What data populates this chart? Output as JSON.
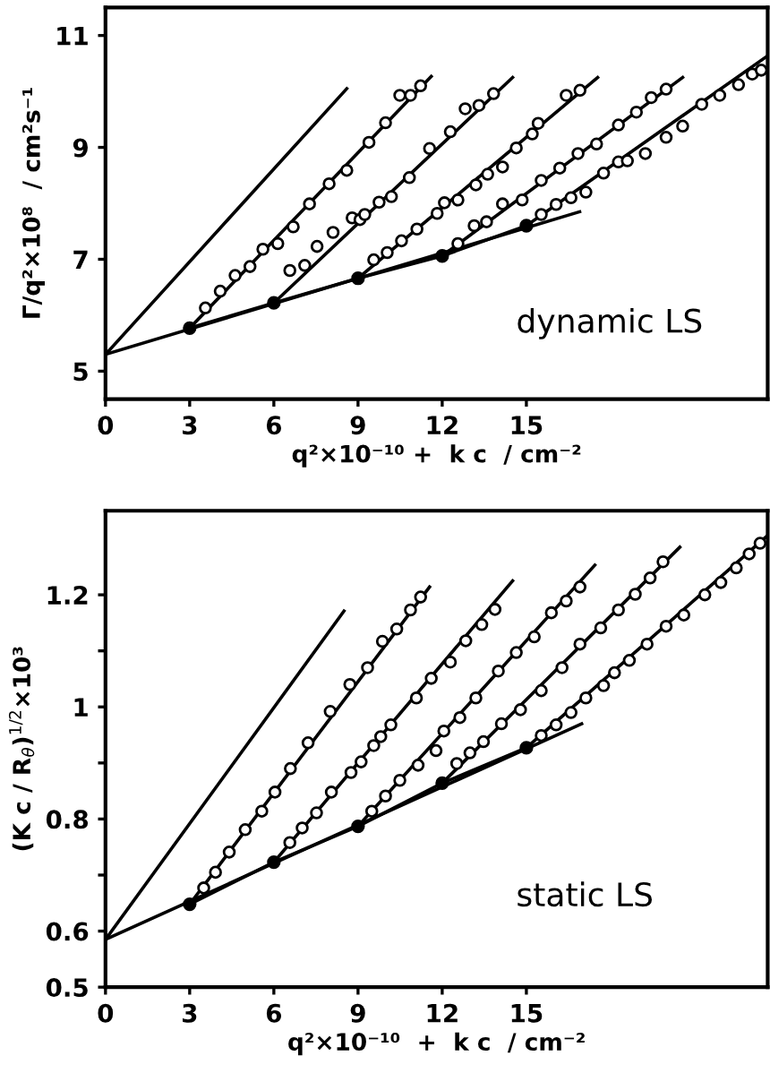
{
  "chart_data": [
    {
      "type": "scatter",
      "xlabel": "q²×10⁻¹⁰ +  k c  / cm⁻²",
      "ylabel": "Γ/q²×10⁸  / cm²s⁻¹",
      "annotations": [
        "dynamic LS"
      ],
      "xlim": [
        0,
        23.6
      ],
      "ylim": [
        4.5,
        11.5
      ],
      "xticks": [
        0,
        3,
        6,
        9,
        12,
        15
      ],
      "yticks": [
        5,
        7,
        9,
        11
      ],
      "grid": false,
      "series": [
        {
          "type": "line",
          "color": "#000000",
          "marker": "none",
          "x": [
            0,
            8.6
          ],
          "values": [
            5.3,
            10.05
          ]
        },
        {
          "type": "line",
          "color": "#000000",
          "marker": "none",
          "x": [
            0,
            16.9
          ],
          "values": [
            5.3,
            7.85
          ]
        },
        {
          "type": "line",
          "color": "#000000",
          "marker": "circle",
          "x": [
            3,
            6,
            9,
            12,
            15
          ],
          "values": [
            5.77,
            6.22,
            6.66,
            7.06,
            7.6
          ]
        },
        {
          "type": "line",
          "color": "#000000",
          "marker": "none",
          "x": [
            3,
            11.61
          ],
          "values": [
            5.77,
            10.27
          ]
        },
        {
          "type": "line",
          "color": "#000000",
          "marker": "none",
          "x": [
            6,
            14.51
          ],
          "values": [
            6.22,
            10.25
          ]
        },
        {
          "type": "line",
          "color": "#000000",
          "marker": "none",
          "x": [
            9,
            17.54
          ],
          "values": [
            6.66,
            10.25
          ]
        },
        {
          "type": "line",
          "color": "#000000",
          "marker": "none",
          "x": [
            12,
            20.57
          ],
          "values": [
            7.06,
            10.25
          ]
        },
        {
          "type": "line",
          "color": "#000000",
          "marker": "none",
          "x": [
            15,
            23.58
          ],
          "values": [
            7.6,
            10.63
          ]
        },
        {
          "type": "scatter",
          "color": "#000000",
          "x": [
            3.56,
            4.09,
            4.62,
            5.15,
            5.61,
            6.14,
            6.69,
            7.27,
            7.97,
            8.6,
            9.39,
            9.98,
            10.49,
            10.87,
            11.23
          ],
          "values": [
            6.13,
            6.43,
            6.71,
            6.87,
            7.18,
            7.28,
            7.58,
            7.99,
            8.35,
            8.59,
            9.09,
            9.44,
            9.93,
            9.93,
            10.1
          ]
        },
        {
          "type": "scatter",
          "color": "#000000",
          "x": [
            6.57,
            7.1,
            7.54,
            8.11,
            8.79,
            9.07,
            9.24,
            9.75,
            10.19,
            10.83,
            11.55,
            12.29,
            12.82,
            13.31,
            13.83
          ],
          "values": [
            6.8,
            6.89,
            7.23,
            7.48,
            7.74,
            7.71,
            7.8,
            8.02,
            8.12,
            8.46,
            8.98,
            9.28,
            9.69,
            9.75,
            9.96
          ]
        },
        {
          "type": "scatter",
          "color": "#000000",
          "x": [
            9.56,
            10.04,
            10.55,
            11.1,
            11.82,
            12.08,
            12.56,
            13.2,
            13.62,
            14.15,
            14.64,
            15.21,
            15.42,
            16.42,
            16.91
          ],
          "values": [
            6.99,
            7.12,
            7.33,
            7.54,
            7.82,
            8.01,
            8.06,
            8.33,
            8.52,
            8.65,
            8.99,
            9.24,
            9.43,
            9.93,
            10.02
          ]
        },
        {
          "type": "scatter",
          "color": "#000000",
          "x": [
            12.56,
            13.14,
            13.58,
            14.15,
            14.85,
            15.53,
            16.19,
            16.84,
            17.5,
            18.28,
            18.92,
            19.45,
            19.98
          ],
          "values": [
            7.28,
            7.6,
            7.67,
            7.99,
            8.06,
            8.41,
            8.63,
            8.89,
            9.06,
            9.4,
            9.63,
            9.89,
            10.04
          ]
        },
        {
          "type": "scatter",
          "color": "#000000",
          "x": [
            15.53,
            16.06,
            16.59,
            17.12,
            17.75,
            18.28,
            18.6,
            19.24,
            19.98,
            20.57,
            21.25,
            21.89,
            22.56,
            23.05,
            23.37
          ],
          "values": [
            7.8,
            7.98,
            8.1,
            8.2,
            8.54,
            8.74,
            8.76,
            8.89,
            9.18,
            9.38,
            9.77,
            9.93,
            10.12,
            10.31,
            10.38
          ]
        }
      ]
    },
    {
      "type": "scatter",
      "xlabel": "q²×10⁻¹⁰  +  k c  / cm⁻²",
      "ylabel": "(K c / R$_{θ}$)$^{1/2}$×10³",
      "annotations": [
        "static LS"
      ],
      "xlim": [
        0,
        23.6
      ],
      "ylim": [
        0.5,
        1.35
      ],
      "xticks": [
        0,
        3,
        6,
        9,
        12,
        15
      ],
      "yticks": [
        0.5,
        0.6,
        {
          "value": 0.7,
          "label": null
        },
        0.8,
        {
          "value": 0.9,
          "label": null
        },
        {
          "value": 1,
          "label": "1"
        },
        {
          "value": 1.1,
          "label": null
        },
        1.2
      ],
      "grid": false,
      "series": [
        {
          "type": "line",
          "color": "#000000",
          "marker": "none",
          "x": [
            0,
            8.5
          ],
          "values": [
            0.585,
            1.171
          ]
        },
        {
          "type": "line",
          "color": "#000000",
          "marker": "none",
          "x": [
            0,
            16.97
          ],
          "values": [
            0.585,
            0.97
          ]
        },
        {
          "type": "line",
          "color": "#000000",
          "marker": "circle",
          "x": [
            3,
            6,
            9,
            12,
            15
          ],
          "values": [
            0.648,
            0.723,
            0.787,
            0.864,
            0.927
          ]
        },
        {
          "type": "line",
          "color": "#000000",
          "marker": "none",
          "x": [
            3,
            11.55
          ],
          "values": [
            0.648,
            1.214
          ]
        },
        {
          "type": "line",
          "color": "#000000",
          "marker": "none",
          "x": [
            6,
            14.51
          ],
          "values": [
            0.723,
            1.225
          ]
        },
        {
          "type": "line",
          "color": "#000000",
          "marker": "none",
          "x": [
            9,
            17.44
          ],
          "values": [
            0.787,
            1.253
          ]
        },
        {
          "type": "line",
          "color": "#000000",
          "marker": "none",
          "x": [
            12,
            20.47
          ],
          "values": [
            0.864,
            1.285
          ]
        },
        {
          "type": "line",
          "color": "#000000",
          "marker": "none",
          "x": [
            15,
            23.58
          ],
          "values": [
            0.927,
            1.305
          ]
        },
        {
          "type": "scatter",
          "color": "#000000",
          "x": [
            3.5,
            3.92,
            4.41,
            4.98,
            5.57,
            6.04,
            6.59,
            7.22,
            8.01,
            8.71,
            9.34,
            9.87,
            10.38,
            10.87,
            11.23
          ],
          "values": [
            0.677,
            0.705,
            0.741,
            0.781,
            0.814,
            0.848,
            0.89,
            0.936,
            0.992,
            1.04,
            1.07,
            1.117,
            1.139,
            1.173,
            1.196
          ]
        },
        {
          "type": "scatter",
          "color": "#000000",
          "x": [
            6.57,
            7.01,
            7.52,
            8.05,
            8.75,
            9.11,
            9.56,
            9.81,
            10.17,
            11.08,
            11.61,
            12.29,
            12.84,
            13.41,
            13.88
          ],
          "values": [
            0.758,
            0.784,
            0.811,
            0.848,
            0.883,
            0.902,
            0.931,
            0.947,
            0.968,
            1.016,
            1.051,
            1.08,
            1.118,
            1.147,
            1.174
          ]
        },
        {
          "type": "scatter",
          "color": "#000000",
          "x": [
            9.49,
            9.98,
            10.49,
            11.14,
            11.78,
            12.06,
            12.63,
            13.2,
            14.0,
            14.64,
            15.28,
            15.89,
            16.42,
            16.91
          ],
          "values": [
            0.814,
            0.841,
            0.869,
            0.896,
            0.922,
            0.957,
            0.981,
            1.016,
            1.064,
            1.097,
            1.125,
            1.168,
            1.189,
            1.214
          ]
        },
        {
          "type": "scatter",
          "color": "#000000",
          "x": [
            12.52,
            12.99,
            13.47,
            14.11,
            14.79,
            15.53,
            16.27,
            16.91,
            17.65,
            18.28,
            18.88,
            19.41,
            19.87
          ],
          "values": [
            0.899,
            0.918,
            0.938,
            0.97,
            0.995,
            1.029,
            1.07,
            1.112,
            1.141,
            1.173,
            1.201,
            1.23,
            1.259
          ]
        },
        {
          "type": "scatter",
          "color": "#000000",
          "x": [
            15.53,
            16.06,
            16.59,
            17.12,
            17.75,
            18.14,
            18.67,
            19.3,
            19.98,
            20.61,
            21.36,
            21.93,
            22.48,
            22.94,
            23.33
          ],
          "values": [
            0.949,
            0.968,
            0.99,
            1.016,
            1.038,
            1.061,
            1.083,
            1.112,
            1.144,
            1.164,
            1.2,
            1.222,
            1.248,
            1.273,
            1.292
          ]
        }
      ]
    }
  ]
}
